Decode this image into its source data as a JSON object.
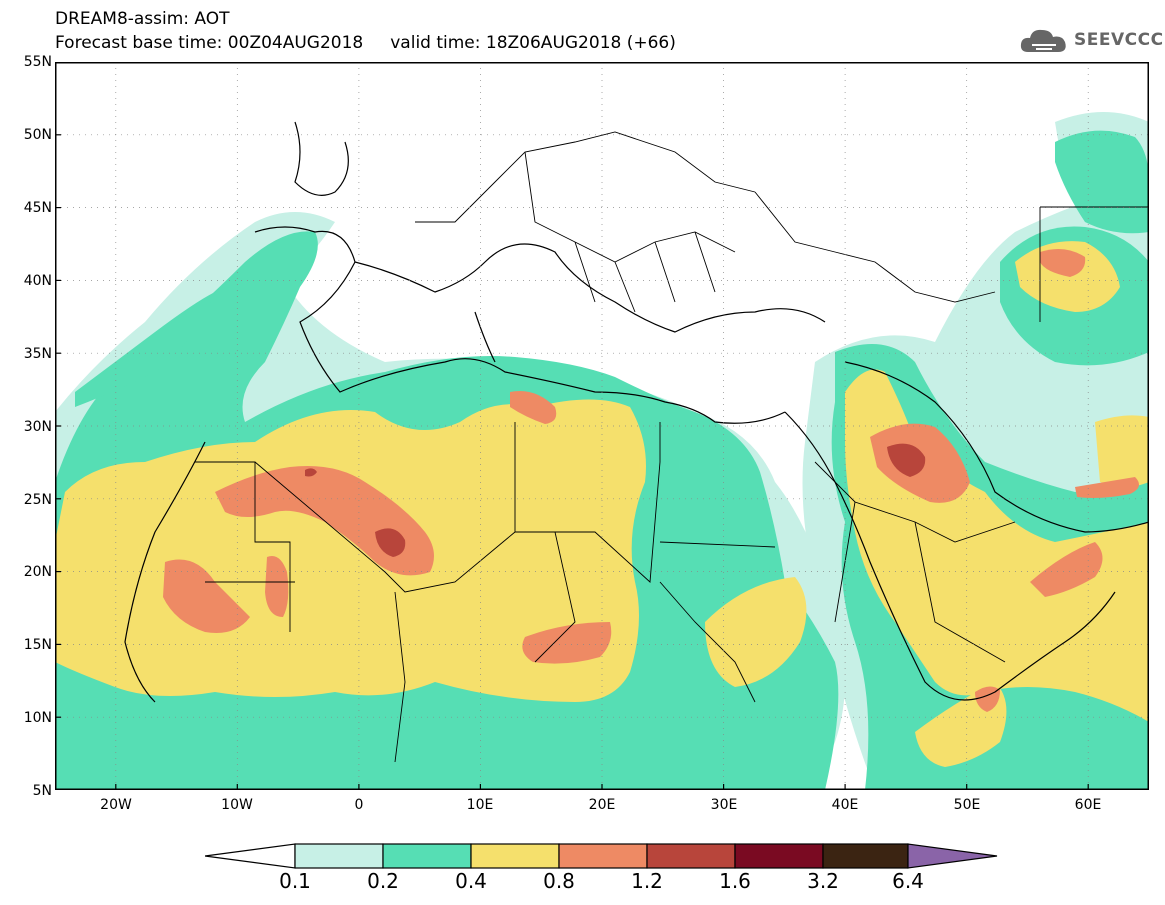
{
  "title": {
    "line1": "DREAM8-assim: AOT",
    "line2": "Forecast base time: 00Z04AUG2018     valid time: 18Z06AUG2018 (+66)"
  },
  "logo": {
    "text": "SEEVCCC",
    "icon": "cloud-icon"
  },
  "map": {
    "lon_range": [
      -25,
      65
    ],
    "lat_range": [
      5,
      55
    ],
    "lat_labels": [
      "55N",
      "50N",
      "45N",
      "40N",
      "35N",
      "30N",
      "25N",
      "20N",
      "15N",
      "10N",
      "5N"
    ],
    "lon_labels": [
      "20W",
      "10W",
      "0",
      "10E",
      "20E",
      "30E",
      "40E",
      "50E",
      "60E"
    ]
  },
  "colorbar": {
    "levels": [
      "0.1",
      "0.2",
      "0.4",
      "0.8",
      "1.2",
      "1.6",
      "3.2",
      "6.4"
    ],
    "colors": [
      "#ffffff",
      "#c7f0e6",
      "#56deb4",
      "#f5e06c",
      "#ee8a64",
      "#b8453b",
      "#7a0a22",
      "#3b2412",
      "#8a64a8"
    ]
  }
}
